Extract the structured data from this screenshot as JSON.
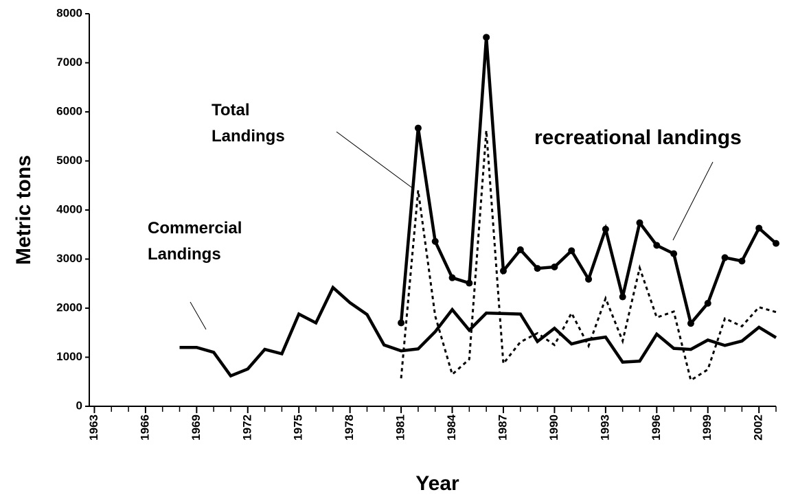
{
  "chart_data": {
    "type": "line",
    "x_label": "Year",
    "y_label": "Metric tons",
    "x": [
      1968,
      1969,
      1970,
      1971,
      1972,
      1973,
      1974,
      1975,
      1976,
      1977,
      1978,
      1979,
      1980,
      1981,
      1982,
      1983,
      1984,
      1985,
      1986,
      1987,
      1988,
      1989,
      1990,
      1991,
      1992,
      1993,
      1994,
      1995,
      1996,
      1997,
      1998,
      1999,
      2000,
      2001,
      2002,
      2003
    ],
    "series": [
      {
        "name": "Commercial Landings",
        "color": "#000000",
        "style": "solid",
        "markers": false,
        "values": [
          1200,
          1200,
          1100,
          620,
          760,
          1160,
          1070,
          1880,
          1700,
          2420,
          2110,
          1870,
          1250,
          1130,
          1170,
          1520,
          1970,
          1550,
          1900,
          1890,
          1880,
          1320,
          1590,
          1270,
          1360,
          1410,
          900,
          920,
          1470,
          1180,
          1160,
          1350,
          1240,
          1330,
          1610,
          1400
        ]
      },
      {
        "name": "Total Landings",
        "color": "#000000",
        "style": "solid",
        "markers": true,
        "values": [
          null,
          null,
          null,
          null,
          null,
          null,
          null,
          null,
          null,
          null,
          null,
          null,
          null,
          1700,
          5670,
          3360,
          2620,
          2510,
          7520,
          2760,
          3190,
          2810,
          2840,
          3170,
          2590,
          3610,
          2230,
          3740,
          3280,
          3110,
          1690,
          2100,
          3030,
          2960,
          3630,
          3320
        ]
      },
      {
        "name": "recreational landings",
        "color": "#000000",
        "style": "dotted",
        "markers": false,
        "values": [
          null,
          null,
          null,
          null,
          null,
          null,
          null,
          null,
          null,
          null,
          null,
          null,
          null,
          570,
          4400,
          1840,
          650,
          960,
          5620,
          870,
          1310,
          1490,
          1250,
          1900,
          1230,
          2200,
          1330,
          2820,
          1810,
          1930,
          530,
          750,
          1790,
          1630,
          2020,
          1920
        ]
      }
    ],
    "annotations": [
      [
        "Total",
        "Landings"
      ],
      [
        "Commercial",
        "Landings"
      ],
      [
        "recreational landings"
      ]
    ],
    "xlim": [
      1962.7,
      2003
    ],
    "xticks": [
      1963,
      1966,
      1969,
      1972,
      1975,
      1978,
      1981,
      1984,
      1987,
      1990,
      1993,
      1996,
      1999,
      2002
    ],
    "ylim": [
      0,
      8000
    ],
    "yticks": [
      0,
      1000,
      2000,
      3000,
      4000,
      5000,
      6000,
      7000,
      8000
    ]
  }
}
